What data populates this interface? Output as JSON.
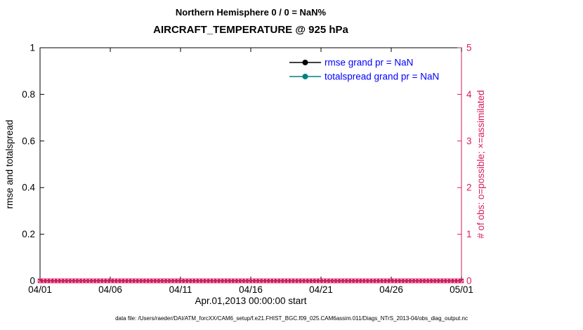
{
  "header": {
    "title_line1": "Northern Hemisphere 0 / 0 = NaN%",
    "title_line2": "AIRCRAFT_TEMPERATURE @ 925 hPa"
  },
  "footer": {
    "data_file_note": "data file: /Users/raeder/DAI/ATM_forcXX/CAM6_setup/f.e21.FHIST_BGC.f09_025.CAM6assim.011/Diags_NTrS_2013-04/obs_diag_output.nc"
  },
  "chart_data": {
    "type": "line",
    "title": "Northern Hemisphere 0 / 0 = NaN%",
    "subtitle": "AIRCRAFT_TEMPERATURE @ 925 hPa",
    "xlabel": "Apr.01,2013 00:00:00 start",
    "ylabel_left": "rmse and totalspread",
    "ylabel_right": "# of obs: o=possible; ×=assimilated",
    "grid": false,
    "legend_position": "upper right inside",
    "legend_text_color": "#0000ff",
    "x_tick_labels": [
      "04/01",
      "04/06",
      "04/11",
      "04/16",
      "04/21",
      "04/26",
      "05/01"
    ],
    "y_left": {
      "range": [
        0,
        1
      ],
      "ticks": [
        0,
        0.2,
        0.4,
        0.6,
        0.8,
        1
      ],
      "tick_labels": [
        "0",
        "0.2",
        "0.4",
        "0.6",
        "0.8",
        "1"
      ],
      "color": "#000000"
    },
    "y_right": {
      "range": [
        0,
        5
      ],
      "ticks": [
        0,
        1,
        2,
        3,
        4,
        5
      ],
      "tick_labels": [
        "0",
        "1",
        "2",
        "3",
        "4",
        "5"
      ],
      "color": "#d81b60"
    },
    "series": [
      {
        "name": "rmse",
        "legend_label": "rmse grand pr = NaN",
        "color": "#000000",
        "grand_pr": "NaN",
        "values": []
      },
      {
        "name": "totalspread",
        "legend_label": "totalspread grand pr = NaN",
        "color": "#008080",
        "grand_pr": "NaN",
        "values": []
      }
    ],
    "observations": {
      "description": "o=possible and ×=assimilated obs-count markers, all equal to 0, plotted along the baseline for every time bin in April 2013",
      "value_possible": 0,
      "value_assimilated": 0,
      "points": 120,
      "color": "#d81b60"
    }
  }
}
